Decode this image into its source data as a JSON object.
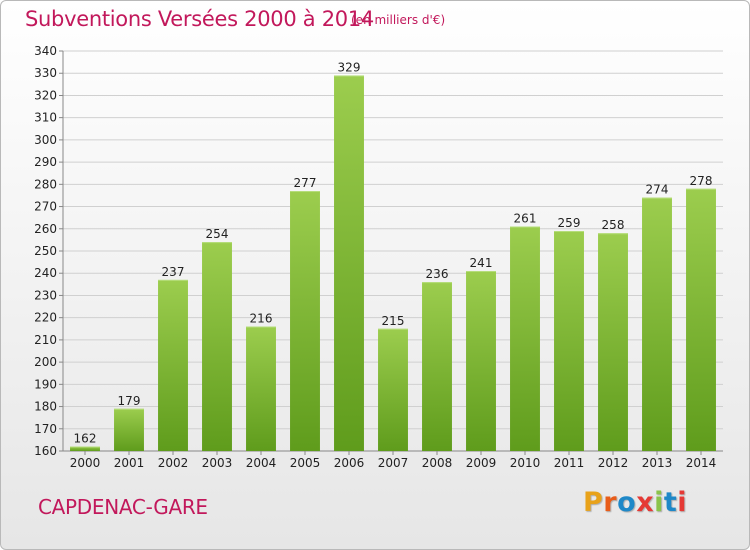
{
  "header": {
    "title": "Subventions Versées 2000 à 2014",
    "subtitle": "(en milliers d'€)"
  },
  "footer": {
    "city": "CAPDENAC-GARE",
    "logo_text": "Proxiti",
    "logo_colors": [
      "#e8a21a",
      "#e85d1a",
      "#1e88c8",
      "#e53935",
      "#8bc34a",
      "#1e88c8",
      "#e53935"
    ]
  },
  "colors": {
    "bar_top": "#9ccd4e",
    "bar_bottom": "#5f9c1c",
    "title": "#c2185b"
  },
  "chart_data": {
    "type": "bar",
    "categories": [
      "2000",
      "2001",
      "2002",
      "2003",
      "2004",
      "2005",
      "2006",
      "2007",
      "2008",
      "2009",
      "2010",
      "2011",
      "2012",
      "2013",
      "2014"
    ],
    "values": [
      162,
      179,
      237,
      254,
      216,
      277,
      329,
      215,
      236,
      241,
      261,
      259,
      258,
      274,
      278
    ],
    "title": "Subventions Versées 2000 à 2014",
    "xlabel": "",
    "ylabel": "",
    "ylim": [
      160,
      340
    ],
    "yticks": [
      160,
      170,
      180,
      190,
      200,
      210,
      220,
      230,
      240,
      250,
      260,
      270,
      280,
      290,
      300,
      310,
      320,
      330,
      340
    ],
    "grid": true,
    "data_labels": true
  }
}
